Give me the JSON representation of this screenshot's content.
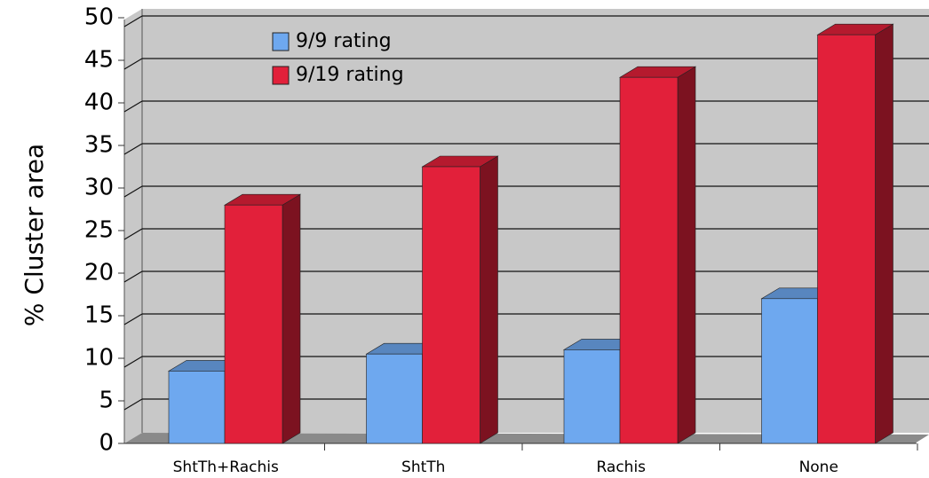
{
  "chart_data": {
    "type": "bar3d",
    "ylabel": "% Cluster area",
    "categories": [
      "ShtTh+Rachis",
      "ShtTh",
      "Rachis",
      "None"
    ],
    "series": [
      {
        "name": "9/9 rating",
        "color": "#6ea8ef",
        "values": [
          8.5,
          10.5,
          11,
          17
        ]
      },
      {
        "name": "9/19 rating",
        "color": "#e2203a",
        "values": [
          28,
          32.5,
          43,
          48
        ]
      }
    ],
    "ylim": [
      0,
      50
    ],
    "yticks": [
      0,
      5,
      10,
      15,
      20,
      25,
      30,
      35,
      40,
      45,
      50
    ],
    "grid": true
  }
}
